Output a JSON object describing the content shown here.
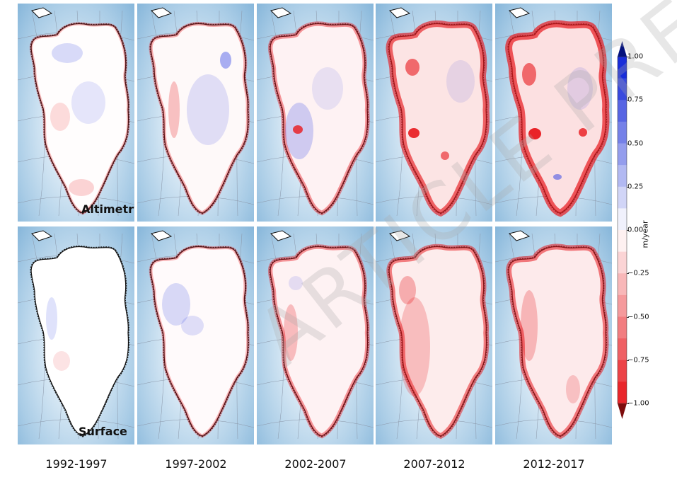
{
  "rows": [
    {
      "label": "Altimetry"
    },
    {
      "label": "Surface"
    }
  ],
  "periods": [
    "1992-1997",
    "1997-2002",
    "2002-2007",
    "2007-2012",
    "2012-2017"
  ],
  "colorbar": {
    "unit": "m/year",
    "min": -1.0,
    "max": 1.0,
    "ticks": [
      "1.00",
      "0.75",
      "0.50",
      "0.25",
      "0.00",
      "−0.25",
      "−0.50",
      "−0.75",
      "−1.00"
    ],
    "positive_color": "#0a1fd6",
    "negative_color": "#e8181d"
  },
  "panel_thinning": {
    "Altimetry": [
      0.05,
      0.15,
      0.3,
      0.65,
      0.75
    ],
    "Surface": [
      0.0,
      0.1,
      0.3,
      0.45,
      0.5
    ]
  },
  "watermark": "ARTICLE PREVIEW"
}
